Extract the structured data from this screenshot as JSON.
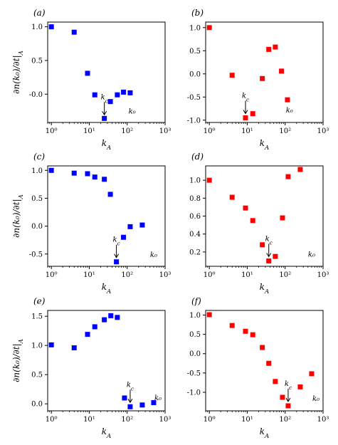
{
  "figure": {
    "shared_ylabel": "∂n(k₀)/∂t|_A",
    "shared_xlabel": "k_A"
  },
  "chart_data": [
    {
      "panel": "(a)",
      "type": "scatter",
      "color": "#0000ff",
      "xscale": "log",
      "xlim": [
        0.8,
        1000
      ],
      "ylim": [
        -0.42,
        1.07
      ],
      "yticks": [
        "-0.0",
        "0.5",
        "1.0"
      ],
      "ytick_values": [
        0.0,
        0.5,
        1.0
      ],
      "xticks": [
        "10⁰",
        "10¹",
        "10²",
        "10³"
      ],
      "xlabel": "k_A",
      "ylabel": "∂n(k₀)/∂t|_A",
      "annotations": [
        {
          "text": "k_c",
          "x": 25,
          "y": -0.37,
          "arrow": true
        },
        {
          "text": "k₀",
          "x": 135,
          "y": -0.35,
          "arrow": false
        }
      ],
      "points": [
        {
          "x": 1,
          "y": 1.0
        },
        {
          "x": 4,
          "y": 0.92
        },
        {
          "x": 9,
          "y": 0.31
        },
        {
          "x": 14,
          "y": -0.01
        },
        {
          "x": 25,
          "y": -0.36
        },
        {
          "x": 36,
          "y": -0.11
        },
        {
          "x": 55,
          "y": -0.01
        },
        {
          "x": 80,
          "y": 0.03
        },
        {
          "x": 120,
          "y": 0.02
        }
      ]
    },
    {
      "panel": "(b)",
      "type": "scatter",
      "color": "#ff0000",
      "xscale": "log",
      "xlim": [
        0.8,
        1000
      ],
      "ylim": [
        -1.05,
        1.12
      ],
      "yticks": [
        "-1.0",
        "-0.5",
        "0.0",
        "0.5",
        "1.0"
      ],
      "ytick_values": [
        -1.0,
        -0.5,
        0.0,
        0.5,
        1.0
      ],
      "xticks": [
        "10⁰",
        "10¹",
        "10²",
        "10³"
      ],
      "xlabel": "k_A",
      "annotations": [
        {
          "text": "k_c",
          "x": 9,
          "y": -0.95,
          "arrow": true
        },
        {
          "text": "k₀",
          "x": 130,
          "y": -0.93,
          "arrow": false
        }
      ],
      "points": [
        {
          "x": 1,
          "y": 1.0
        },
        {
          "x": 4,
          "y": -0.03
        },
        {
          "x": 9,
          "y": -0.95
        },
        {
          "x": 14,
          "y": -0.86
        },
        {
          "x": 25,
          "y": -0.1
        },
        {
          "x": 37,
          "y": 0.53
        },
        {
          "x": 55,
          "y": 0.58
        },
        {
          "x": 80,
          "y": 0.06
        },
        {
          "x": 115,
          "y": -0.56
        }
      ]
    },
    {
      "panel": "(c)",
      "type": "scatter",
      "color": "#0000ff",
      "xscale": "log",
      "xlim": [
        0.8,
        1000
      ],
      "ylim": [
        -0.72,
        1.08
      ],
      "yticks": [
        "-0.5",
        "0.0",
        "0.5",
        "1.0"
      ],
      "ytick_values": [
        -0.5,
        0.0,
        0.5,
        1.0
      ],
      "xticks": [
        "10⁰",
        "10¹",
        "10²",
        "10³"
      ],
      "xlabel": "k_A",
      "ylabel": "∂n(k₀)/∂t|_A",
      "annotations": [
        {
          "text": "k_c",
          "x": 52,
          "y": -0.64,
          "arrow": true
        },
        {
          "text": "k₀",
          "x": 500,
          "y": -0.63,
          "arrow": false
        }
      ],
      "points": [
        {
          "x": 1,
          "y": 1.0
        },
        {
          "x": 4,
          "y": 0.95
        },
        {
          "x": 9,
          "y": 0.94
        },
        {
          "x": 14,
          "y": 0.88
        },
        {
          "x": 25,
          "y": 0.84
        },
        {
          "x": 36,
          "y": 0.57
        },
        {
          "x": 52,
          "y": -0.64
        },
        {
          "x": 80,
          "y": -0.2
        },
        {
          "x": 120,
          "y": -0.01
        },
        {
          "x": 250,
          "y": 0.02
        }
      ]
    },
    {
      "panel": "(d)",
      "type": "scatter",
      "color": "#ff0000",
      "xscale": "log",
      "xlim": [
        0.8,
        1000
      ],
      "ylim": [
        0.04,
        1.16
      ],
      "yticks": [
        "0.2",
        "0.4",
        "0.6",
        "0.8",
        "1.0"
      ],
      "ytick_values": [
        0.2,
        0.4,
        0.6,
        0.8,
        1.0
      ],
      "xticks": [
        "10⁰",
        "10¹",
        "10²",
        "10³"
      ],
      "xlabel": "k_A",
      "annotations": [
        {
          "text": "k_c",
          "x": 37,
          "y": 0.1,
          "arrow": true
        },
        {
          "text": "k₀",
          "x": 500,
          "y": 0.1,
          "arrow": false
        }
      ],
      "points": [
        {
          "x": 1,
          "y": 1.0
        },
        {
          "x": 4,
          "y": 0.81
        },
        {
          "x": 9,
          "y": 0.69
        },
        {
          "x": 14,
          "y": 0.55
        },
        {
          "x": 25,
          "y": 0.28
        },
        {
          "x": 37,
          "y": 0.1
        },
        {
          "x": 55,
          "y": 0.15
        },
        {
          "x": 85,
          "y": 0.58
        },
        {
          "x": 120,
          "y": 1.04
        },
        {
          "x": 250,
          "y": 1.12
        }
      ]
    },
    {
      "panel": "(e)",
      "type": "scatter",
      "color": "#0000ff",
      "xscale": "log",
      "xlim": [
        0.8,
        1000
      ],
      "ylim": [
        -0.12,
        1.6
      ],
      "yticks": [
        "0.0",
        "0.5",
        "1.0",
        "1.5"
      ],
      "ytick_values": [
        0.0,
        0.5,
        1.0,
        1.5
      ],
      "xticks": [
        "10⁰",
        "10¹",
        "10²",
        "10³"
      ],
      "xlabel": "k_A",
      "ylabel": "∂n(k₀)/∂t|_A",
      "annotations": [
        {
          "text": "k_c",
          "x": 120,
          "y": -0.05,
          "arrow": true
        },
        {
          "text": "k₀",
          "x": 650,
          "y": -0.01,
          "arrow": false
        }
      ],
      "points": [
        {
          "x": 1,
          "y": 1.01
        },
        {
          "x": 4,
          "y": 0.96
        },
        {
          "x": 9,
          "y": 1.19
        },
        {
          "x": 14,
          "y": 1.32
        },
        {
          "x": 25,
          "y": 1.44
        },
        {
          "x": 37,
          "y": 1.51
        },
        {
          "x": 55,
          "y": 1.48
        },
        {
          "x": 85,
          "y": 0.1
        },
        {
          "x": 120,
          "y": -0.05
        },
        {
          "x": 250,
          "y": -0.02
        },
        {
          "x": 500,
          "y": 0.02
        }
      ]
    },
    {
      "panel": "(f)",
      "type": "scatter",
      "color": "#ff0000",
      "xscale": "log",
      "xlim": [
        0.8,
        1000
      ],
      "ylim": [
        -1.48,
        1.12
      ],
      "yticks": [
        "-1.0",
        "-0.5",
        "0.0",
        "0.5",
        "1.0"
      ],
      "ytick_values": [
        -1.0,
        -0.5,
        0.0,
        0.5,
        1.0
      ],
      "xticks": [
        "10⁰",
        "10¹",
        "10²",
        "10³"
      ],
      "xlabel": "k_A",
      "annotations": [
        {
          "text": "k_c",
          "x": 120,
          "y": -1.35,
          "arrow": true
        },
        {
          "text": "k₀",
          "x": 650,
          "y": -1.33,
          "arrow": false
        }
      ],
      "points": [
        {
          "x": 1,
          "y": 1.01
        },
        {
          "x": 4,
          "y": 0.73
        },
        {
          "x": 9,
          "y": 0.58
        },
        {
          "x": 14,
          "y": 0.49
        },
        {
          "x": 25,
          "y": 0.16
        },
        {
          "x": 37,
          "y": -0.25
        },
        {
          "x": 55,
          "y": -0.72
        },
        {
          "x": 85,
          "y": -1.13
        },
        {
          "x": 120,
          "y": -1.35
        },
        {
          "x": 250,
          "y": -0.86
        },
        {
          "x": 500,
          "y": -0.52
        }
      ]
    }
  ]
}
